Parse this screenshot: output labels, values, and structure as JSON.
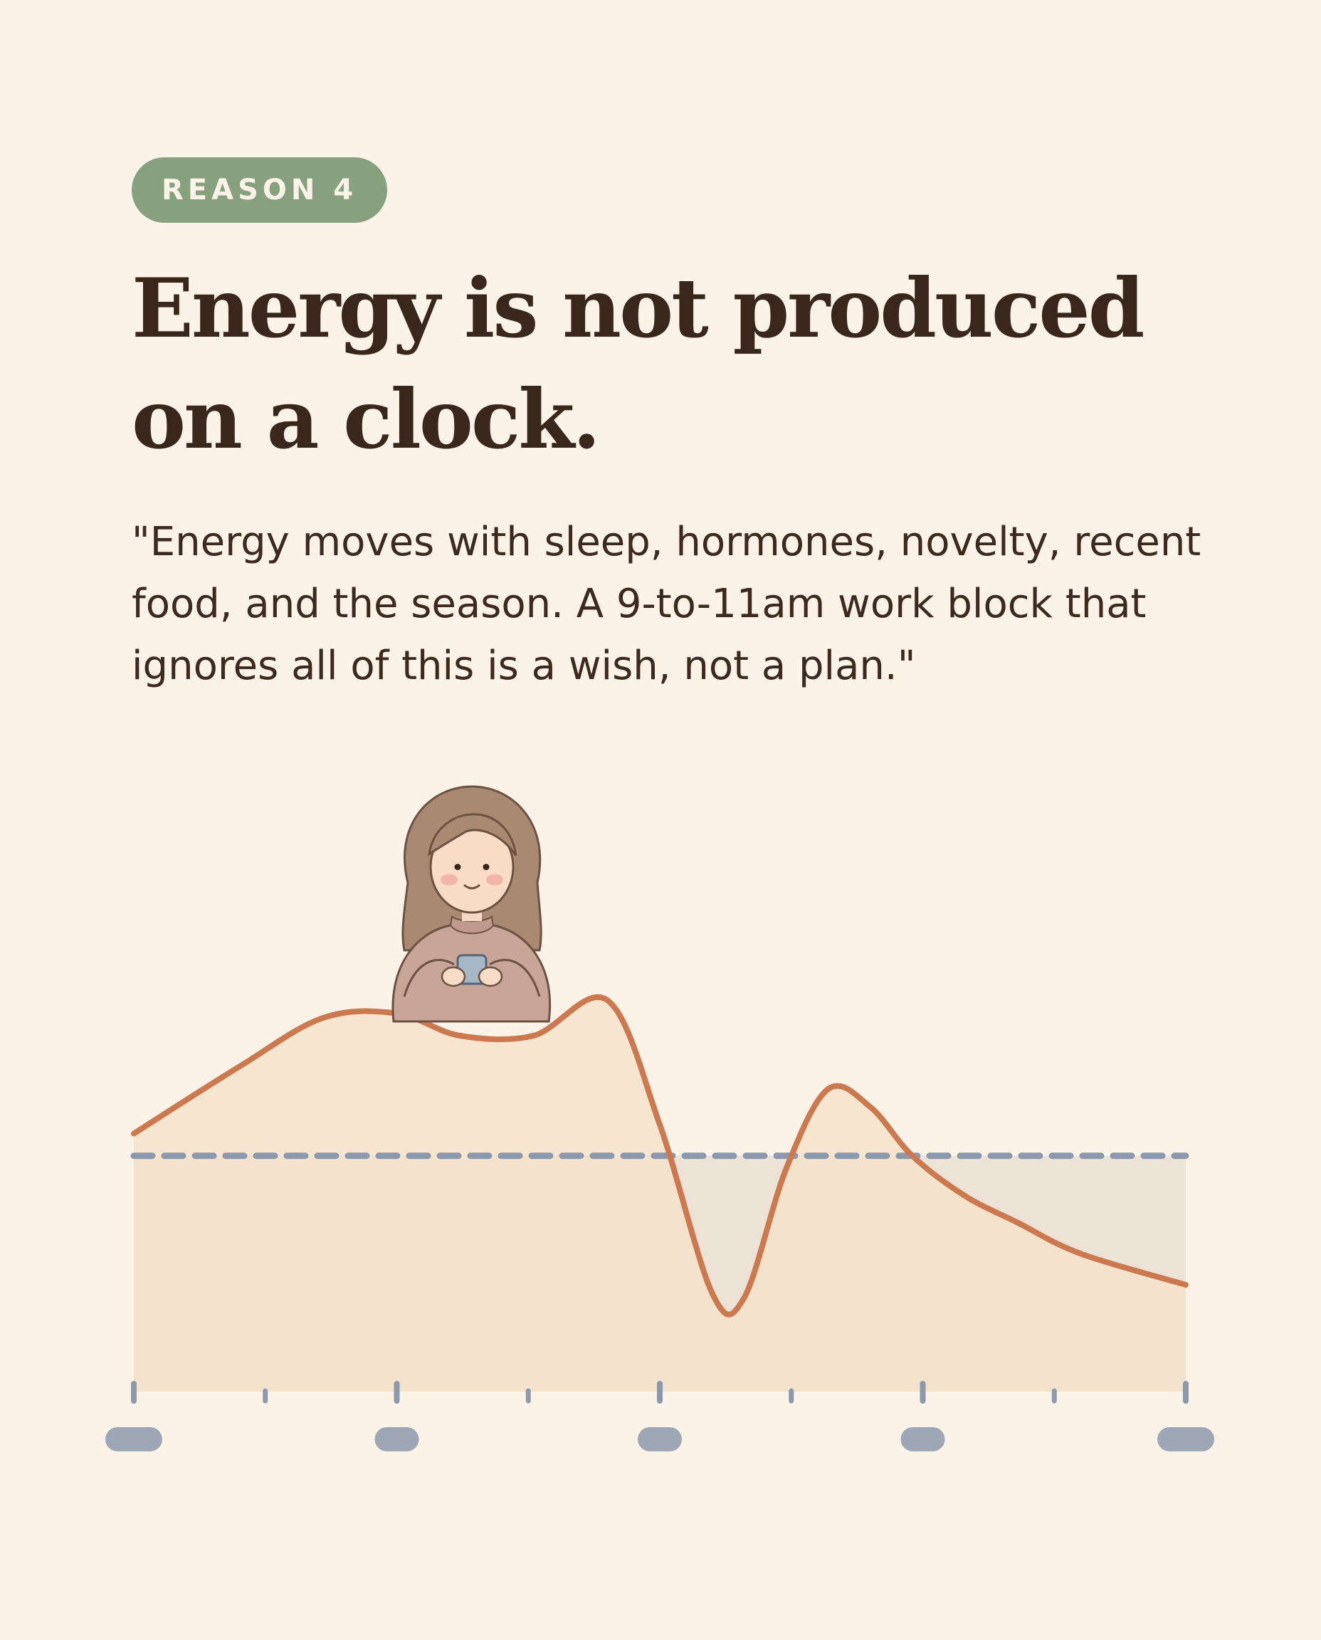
{
  "badge": "REASON 4",
  "title": "Energy is not produced on a clock.",
  "quote": "\"Energy moves with sleep, hormones, novelty, recent food, and the season. A 9-to-11am work block that ignores all of this is a wish, not a plan.\"",
  "colors": {
    "background": "#fcf3e8",
    "badge": "#87a17e",
    "title": "#3a271c",
    "curve": "#cd7950",
    "fill": "#f5e2ca",
    "dashed_line": "#8c99ad",
    "axis": "#8c99ad"
  },
  "illustration": {
    "figure": "person-holding-mug-icon"
  },
  "chart_data": {
    "type": "line",
    "series": [
      {
        "x": [
          0,
          0.1,
          0.18,
          0.25,
          0.31,
          0.38,
          0.45,
          0.5,
          0.55,
          0.58,
          0.62,
          0.66,
          0.7,
          0.74,
          0.79,
          0.84,
          0.9,
          1.0
        ],
        "values": [
          0.58,
          0.73,
          0.84,
          0.85,
          0.8,
          0.8,
          0.88,
          0.6,
          0.22,
          0.21,
          0.5,
          0.68,
          0.64,
          0.53,
          0.44,
          0.38,
          0.31,
          0.24
        ]
      }
    ],
    "threshold": 0.53,
    "ylim": [
      0,
      1
    ],
    "xlim": [
      0,
      1
    ],
    "x_major_ticks": [
      0,
      0.25,
      0.5,
      0.75,
      1
    ],
    "x_minor_ticks": [
      0.125,
      0.375,
      0.625,
      0.875
    ],
    "tick_labels_visible": false,
    "grid": false
  }
}
